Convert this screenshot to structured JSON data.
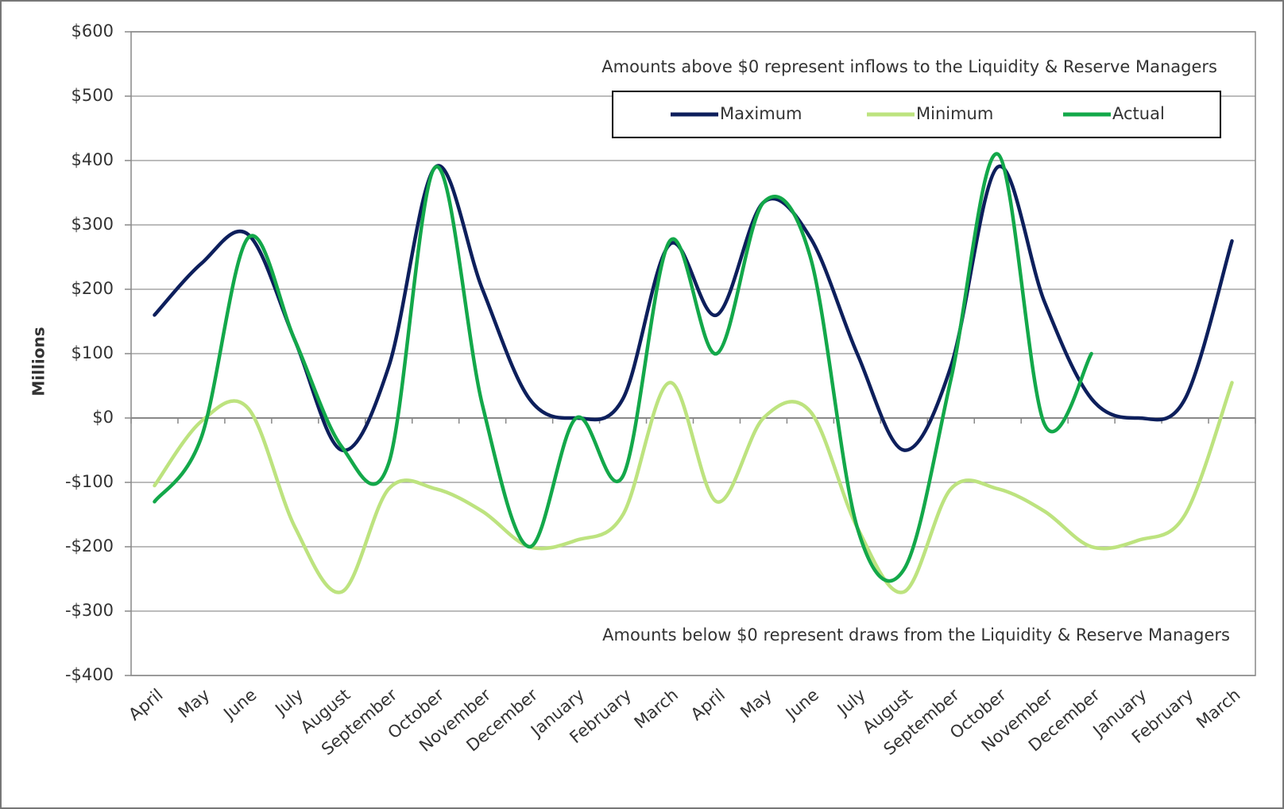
{
  "chart_data": {
    "type": "line",
    "y_label": "Millions",
    "annotations": [
      "Amounts above $0 represent inflows to the Liquidity & Reserve  Managers",
      "Amounts below $0 represent draws from the Liquidity & Reserve  Managers"
    ],
    "categories": [
      "April",
      "May",
      "June",
      "July",
      "August",
      "September",
      "October",
      "November",
      "December",
      "January",
      "February",
      "March",
      "April",
      "May",
      "June",
      "July",
      "August",
      "September",
      "October",
      "November",
      "December",
      "January",
      "February",
      "March"
    ],
    "series": [
      {
        "name": "Maximum",
        "color": "#0d1f5c",
        "values": [
          160,
          240,
          285,
          120,
          -50,
          80,
          390,
          200,
          30,
          0,
          30,
          270,
          160,
          335,
          280,
          100,
          -50,
          80,
          390,
          180,
          30,
          0,
          30,
          275
        ]
      },
      {
        "name": "Minimum",
        "color": "#bde37f",
        "values": [
          -105,
          -5,
          15,
          -170,
          -270,
          -110,
          -110,
          -145,
          -200,
          -190,
          -150,
          55,
          -130,
          0,
          10,
          -170,
          -270,
          -110,
          -110,
          -145,
          -200,
          -190,
          -150,
          55
        ]
      },
      {
        "name": "Actual",
        "color": "#13a84a",
        "values": [
          -130,
          -30,
          280,
          120,
          -45,
          -70,
          390,
          20,
          -200,
          0,
          -90,
          275,
          100,
          335,
          250,
          -170,
          -235,
          60,
          410,
          -10,
          100,
          null,
          null,
          null
        ]
      }
    ],
    "ylim": [
      -400,
      600
    ],
    "yticks": [
      {
        "value": -400,
        "label": "-$400"
      },
      {
        "value": -300,
        "label": "-$300"
      },
      {
        "value": -200,
        "label": "-$200"
      },
      {
        "value": -100,
        "label": "-$100"
      },
      {
        "value": 0,
        "label": "$0"
      },
      {
        "value": 100,
        "label": "$100"
      },
      {
        "value": 200,
        "label": "$200"
      },
      {
        "value": 300,
        "label": "$300"
      },
      {
        "value": 400,
        "label": "$400"
      },
      {
        "value": 500,
        "label": "$500"
      },
      {
        "value": 600,
        "label": "$600"
      }
    ],
    "grid": true,
    "legend": "top-right"
  }
}
